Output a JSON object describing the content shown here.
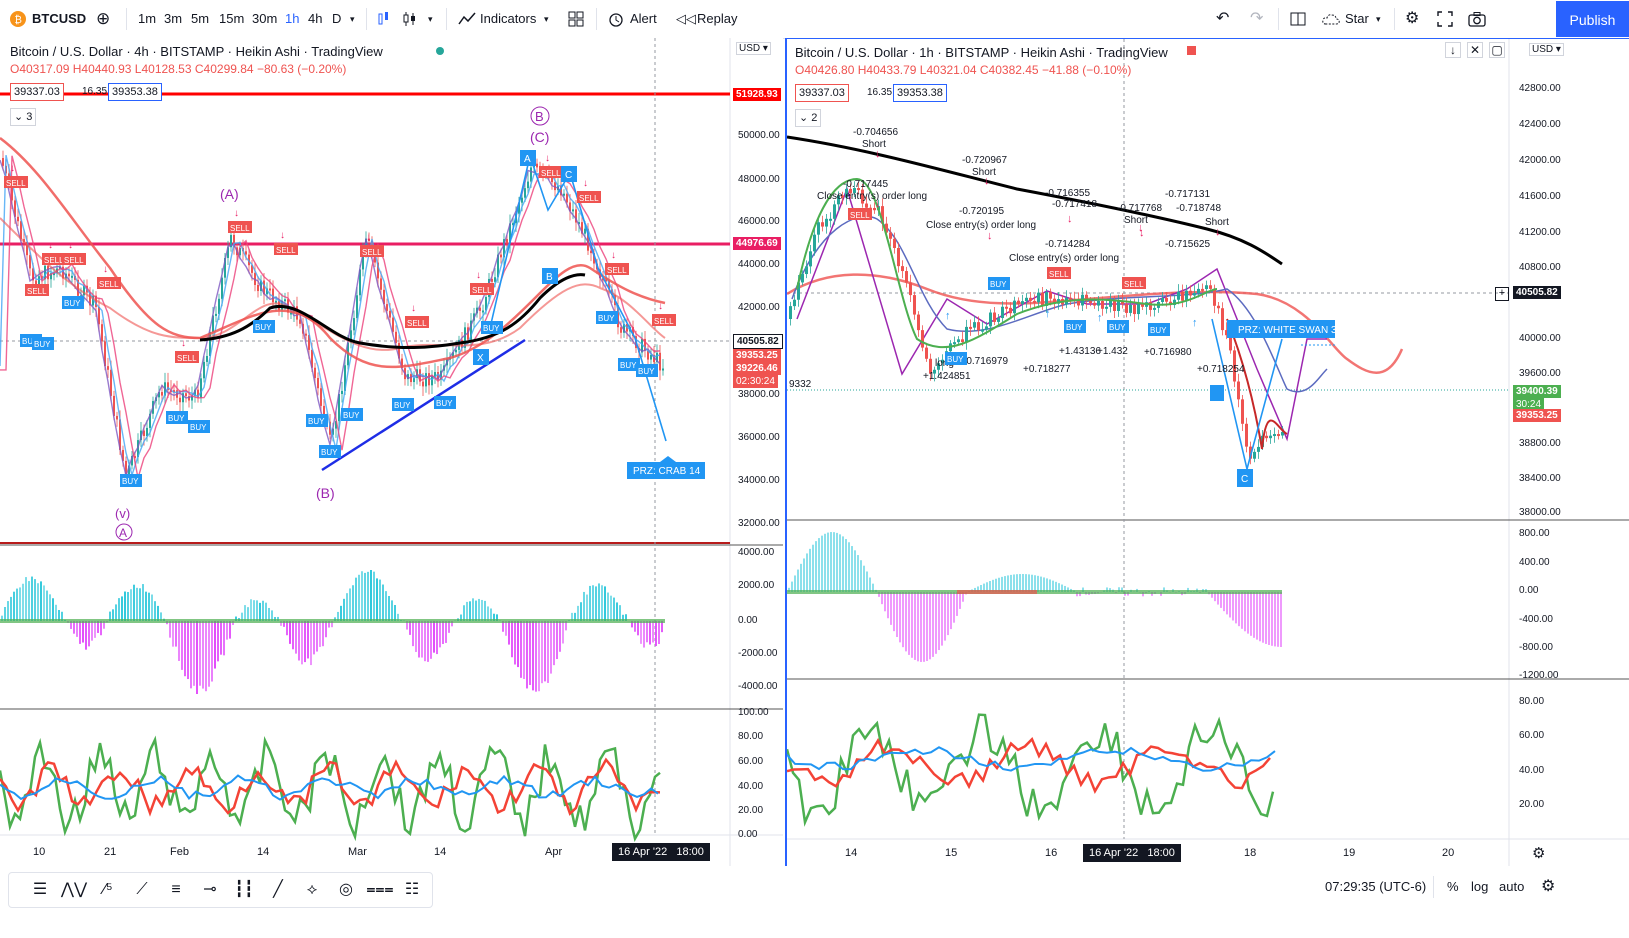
{
  "toolbar": {
    "symbol": "BTCUSD",
    "intervals": [
      "1m",
      "3m",
      "5m",
      "15m",
      "30m",
      "1h",
      "4h",
      "D"
    ],
    "active_interval": "1h",
    "indicators_label": "Indicators",
    "alert_label": "Alert",
    "replay_label": "Replay",
    "layout_label": "Star",
    "publish_label": "Publish"
  },
  "left_chart": {
    "title": "Bitcoin / U.S. Dollar · 4h · BITSTAMP · Heikin Ashi · TradingView",
    "ohlc": {
      "o": "O40317.09",
      "h": "H40440.93",
      "l": "L40128.53",
      "c": "C40299.84",
      "chg": "−80.63 (−0.20%)"
    },
    "bid": "39337.03",
    "spread": "16.35",
    "ask": "39353.38",
    "indicator_count": "3",
    "currency": "USD",
    "price_axis": [
      "50000.00",
      "48000.00",
      "46000.00",
      "44000.00",
      "42000.00",
      "38000.00",
      "36000.00",
      "34000.00",
      "32000.00"
    ],
    "price_tags": {
      "top": "51928.93",
      "mid": "44976.69",
      "cur": "40505.82",
      "p1": "39353.25",
      "p2": "39226.46",
      "countdown": "02:30:24"
    },
    "osc_axis": [
      "4000.00",
      "2000.00",
      "0.00",
      "-2000.00",
      "-4000.00"
    ],
    "rsi_axis": [
      "100.00",
      "80.00",
      "60.00",
      "40.00",
      "20.00",
      "0.00"
    ],
    "time_axis": [
      "10",
      "21",
      "Feb",
      "14",
      "Mar",
      "14",
      "Apr"
    ],
    "crosshair_time": "16 Apr '22",
    "crosshair_hour": "18:00",
    "wave_labels": {
      "A_top": "(A)",
      "B": "(B)",
      "C": "(C)",
      "B_circle": "B",
      "v": "(v)",
      "A_circle": "A"
    },
    "prz_label": "PRZ: CRAB 14",
    "signals": {
      "buy": "BUY",
      "sell": "SELL"
    }
  },
  "right_chart": {
    "title": "Bitcoin / U.S. Dollar · 1h · BITSTAMP · Heikin Ashi · TradingView",
    "ohlc": {
      "o": "O40426.80",
      "h": "H40433.79",
      "l": "L40321.04",
      "c": "C40382.45",
      "chg": "−41.88 (−0.10%)"
    },
    "bid": "39337.03",
    "spread": "16.35",
    "ask": "39353.38",
    "indicator_count": "2",
    "currency": "USD",
    "price_axis": [
      "42800.00",
      "42400.00",
      "42000.00",
      "41600.00",
      "41200.00",
      "40800.00",
      "40000.00",
      "39600.00",
      "38800.00",
      "38400.00",
      "38000.00"
    ],
    "price_tags": {
      "cur": "40505.82",
      "p1": "39400.39",
      "countdown": "30:24",
      "p2": "39353.25"
    },
    "osc_axis": [
      "800.00",
      "400.00",
      "0.00",
      "-400.00",
      "-800.00",
      "-1200.00"
    ],
    "rsi_axis": [
      "80.00",
      "60.00",
      "40.00",
      "20.00"
    ],
    "time_axis": [
      "14",
      "15",
      "16",
      "18",
      "19",
      "20"
    ],
    "crosshair_time": "16 Apr '22",
    "crosshair_hour": "18:00",
    "prz_label": "PRZ: WHITE SWAN 3",
    "c_label": "C",
    "annotations": [
      {
        "t": "-0.704656"
      },
      {
        "t": "Short"
      },
      {
        "t": "-0.717445"
      },
      {
        "t": "Close entry(s) order long"
      },
      {
        "t": "-0.720967"
      },
      {
        "t": "Short"
      },
      {
        "t": "-0.720195"
      },
      {
        "t": "Close entry(s) order long"
      },
      {
        "t": "-0.716355"
      },
      {
        "t": "-0.717418"
      },
      {
        "t": "-0.717768"
      },
      {
        "t": "Short"
      },
      {
        "t": "-0.717131"
      },
      {
        "t": "-0.718748"
      },
      {
        "t": "Short"
      },
      {
        "t": "-0.714284"
      },
      {
        "t": "-0.715625"
      },
      {
        "t": "Close entry(s) order long"
      },
      {
        "t": "long"
      },
      {
        "t": "+1.424851"
      },
      {
        "t": "-0.716979"
      },
      {
        "t": "+0.718277"
      },
      {
        "t": "+1.43136"
      },
      {
        "t": "+1.432"
      },
      {
        "t": "+0.716980"
      },
      {
        "t": "+0.718254"
      },
      {
        "t": "9332"
      }
    ]
  },
  "bottom": {
    "clock": "07:29:35 (UTC-6)",
    "percent": "%",
    "log": "log",
    "auto": "auto"
  },
  "colors": {
    "accent": "#2962ff",
    "up": "#26a69a",
    "down": "#ef5350",
    "magenta": "#e91e63",
    "pink_line": "#ff1744",
    "wave": "#9c27b0"
  }
}
